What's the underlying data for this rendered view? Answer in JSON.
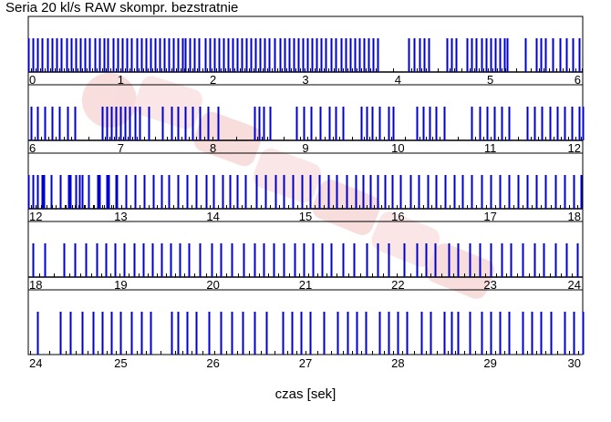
{
  "chart_data": {
    "type": "bar",
    "title": "Seria 20 kl/s RAW skompr. bezstratnie",
    "xlabel": "czas [sek]",
    "ylabel": "",
    "bar_color": "#0000cc",
    "tick_mark_color": "#000000",
    "watermark_color": "#f4c2c2",
    "rows": [
      {
        "xlim": [
          0,
          6
        ],
        "tick_labels": [
          "0",
          "1",
          "2",
          "3",
          "4",
          "5",
          "6"
        ]
      },
      {
        "xlim": [
          6,
          12
        ],
        "tick_labels": [
          "6",
          "7",
          "8",
          "9",
          "10",
          "11",
          "12"
        ]
      },
      {
        "xlim": [
          12,
          18
        ],
        "tick_labels": [
          "12",
          "13",
          "14",
          "15",
          "16",
          "17",
          "18"
        ]
      },
      {
        "xlim": [
          18,
          24
        ],
        "tick_labels": [
          "18",
          "19",
          "20",
          "21",
          "22",
          "23",
          "24"
        ]
      },
      {
        "xlim": [
          24,
          30
        ],
        "tick_labels": [
          "24",
          "25",
          "26",
          "27",
          "28",
          "29",
          "30"
        ]
      }
    ],
    "series": [
      {
        "name": "",
        "comment": "time of each captured frame [s]",
        "x": [
          0.0,
          0.05,
          0.1,
          0.15,
          0.21,
          0.26,
          0.31,
          0.36,
          0.41,
          0.46,
          0.51,
          0.56,
          0.61,
          0.66,
          0.72,
          0.77,
          0.82,
          0.86,
          0.92,
          0.97,
          1.02,
          1.07,
          1.12,
          1.17,
          1.22,
          1.27,
          1.32,
          1.37,
          1.42,
          1.47,
          1.52,
          1.57,
          1.62,
          1.67,
          1.7,
          1.75,
          1.8,
          1.85,
          1.91,
          1.96,
          2.01,
          2.06,
          2.11,
          2.16,
          2.21,
          2.26,
          2.31,
          2.36,
          2.41,
          2.46,
          2.51,
          2.56,
          2.61,
          2.66,
          2.72,
          2.77,
          2.82,
          2.87,
          2.92,
          2.97,
          3.02,
          3.07,
          3.12,
          3.17,
          3.22,
          3.28,
          3.33,
          3.38,
          3.43,
          3.48,
          3.53,
          3.58,
          3.63,
          3.68,
          3.73,
          3.78,
          4.12,
          4.17,
          4.23,
          4.28,
          4.33,
          4.53,
          4.58,
          4.63,
          4.75,
          4.8,
          4.85,
          4.9,
          4.95,
          5.0,
          5.05,
          5.1,
          5.15,
          5.18,
          5.38,
          5.5,
          5.55,
          5.6,
          5.67,
          5.75,
          5.82,
          5.89,
          5.96,
          6.03,
          6.1,
          6.18,
          6.26,
          6.34,
          6.42,
          6.5,
          6.8,
          6.85,
          6.9,
          6.95,
          7.0,
          7.05,
          7.1,
          7.15,
          7.2,
          7.3,
          7.45,
          7.55,
          7.62,
          7.7,
          7.78,
          7.86,
          7.94,
          8.05,
          8.45,
          8.5,
          8.55,
          8.62,
          8.9,
          8.98,
          9.06,
          9.16,
          9.26,
          9.33,
          9.4,
          9.6,
          9.66,
          9.72,
          9.8,
          9.9,
          9.95,
          10.2,
          10.27,
          10.34,
          10.41,
          10.5,
          10.8,
          10.88,
          10.96,
          11.04,
          11.12,
          11.2,
          11.4,
          11.48,
          11.56,
          11.64,
          11.72,
          11.8,
          11.88,
          11.96,
          12.0,
          12.05,
          12.1,
          12.17,
          12.35,
          12.43,
          12.51,
          12.58,
          12.65,
          12.77,
          12.87,
          12.96,
          13.06,
          13.15,
          13.25,
          13.35,
          13.44,
          13.52,
          13.62,
          13.72,
          13.82,
          13.92,
          14.0,
          14.1,
          14.18,
          14.26,
          14.35,
          14.47,
          14.57,
          14.67,
          14.76,
          14.86,
          14.96,
          15.05,
          15.15,
          15.25,
          15.34,
          15.44,
          15.54,
          15.62,
          15.7,
          15.78,
          15.86,
          15.94,
          16.03,
          16.13,
          16.22,
          16.32,
          16.41,
          16.51,
          16.61,
          16.7,
          16.8,
          16.9,
          17.0,
          17.1,
          17.2,
          17.3,
          17.4,
          17.5,
          17.6,
          17.7,
          17.8,
          17.9,
          17.98,
          12.05,
          12.15,
          12.25,
          12.35,
          12.45,
          12.55,
          12.65,
          12.75,
          12.85,
          12.95,
          18.05,
          18.18,
          18.38,
          18.5,
          18.62,
          18.74,
          18.84,
          18.94,
          19.04,
          19.14,
          19.24,
          19.34,
          19.44,
          19.54,
          19.64,
          19.74,
          19.86,
          19.98,
          20.08,
          20.2,
          20.33,
          20.45,
          20.55,
          20.65,
          20.76,
          20.88,
          20.98,
          21.08,
          21.18,
          21.28,
          21.4,
          21.52,
          21.66,
          21.78,
          21.9,
          22.07,
          22.2,
          22.3,
          22.4,
          22.55,
          22.65,
          22.78,
          22.88,
          23.0,
          23.12,
          23.22,
          23.35,
          23.48,
          23.58,
          23.7,
          23.82,
          23.94,
          24.1,
          24.35,
          24.45,
          24.58,
          24.7,
          24.8,
          24.9,
          25.0,
          25.12,
          25.22,
          25.32,
          25.55,
          25.62,
          25.72,
          25.82,
          25.95,
          26.08,
          26.2,
          26.32,
          26.45,
          26.58,
          26.75,
          26.85,
          26.95,
          27.05,
          27.2,
          27.35,
          27.45,
          27.55,
          27.65,
          27.8,
          27.9,
          28.0,
          28.1,
          28.25,
          28.35,
          28.5,
          28.58,
          28.65,
          28.78,
          28.9,
          29.0,
          29.1,
          29.2,
          29.35,
          29.45,
          29.55,
          29.65,
          29.8,
          29.9,
          30.0
        ]
      }
    ]
  }
}
